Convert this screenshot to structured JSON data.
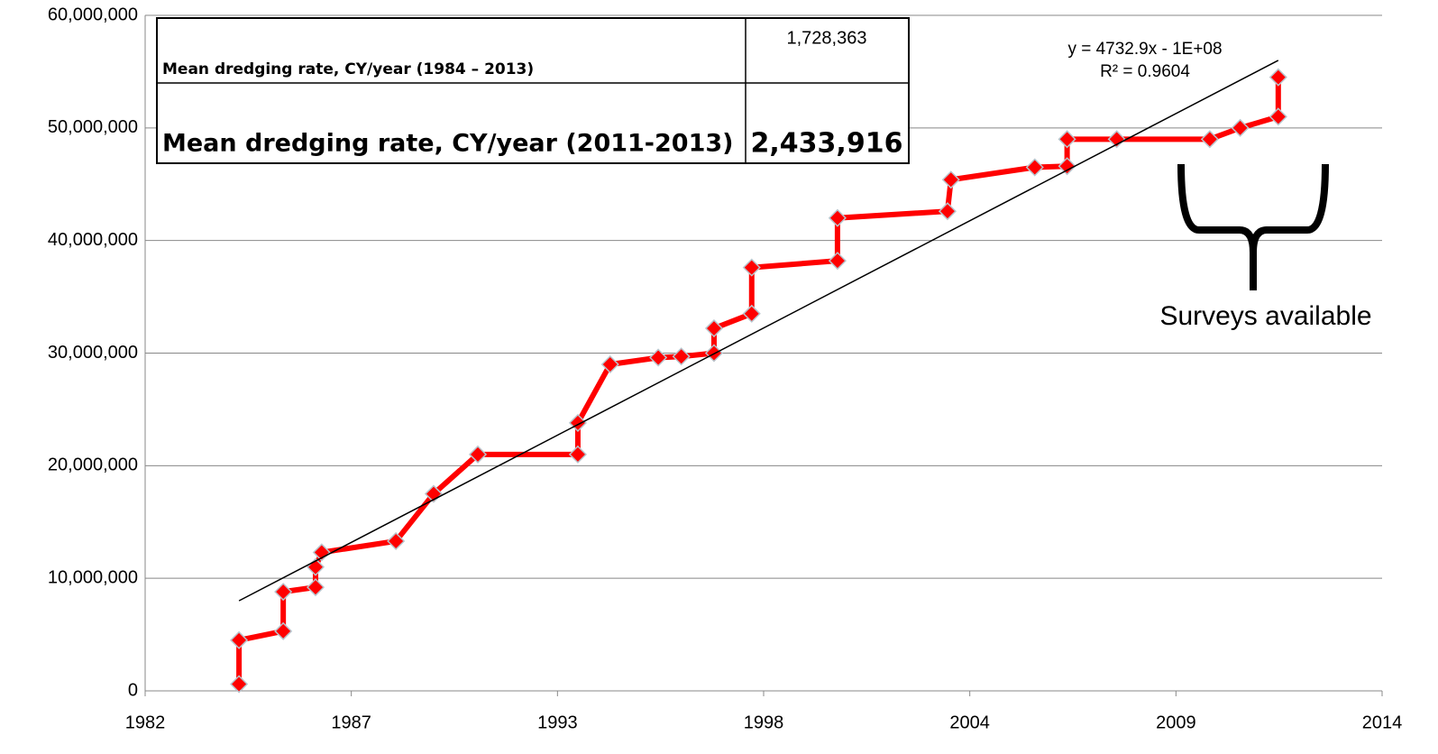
{
  "chart_data": {
    "type": "line",
    "xlim": [
      1982.6,
      2014.76
    ],
    "xticks": [
      {
        "value": 1982.6,
        "label": "1982"
      },
      {
        "value": 1987.96,
        "label": "1987"
      },
      {
        "value": 1993.32,
        "label": "1993"
      },
      {
        "value": 1998.68,
        "label": "1998"
      },
      {
        "value": 2004.04,
        "label": "2004"
      },
      {
        "value": 2009.4,
        "label": "2009"
      },
      {
        "value": 2014.76,
        "label": "2014"
      }
    ],
    "ylim": [
      0,
      60000000
    ],
    "yticks": [
      0,
      {
        "value": 10000000,
        "label": "10,000,000"
      },
      {
        "value": 20000000,
        "label": "20,000,000"
      },
      {
        "value": 30000000,
        "label": "30,000,000"
      },
      {
        "value": 40000000,
        "label": "40,000,000"
      },
      {
        "value": 50000000,
        "label": "50,000,000"
      },
      {
        "value": 60000000,
        "label": "60,000,000"
      }
    ],
    "grid": true,
    "series": [
      {
        "color": "#ff0000",
        "x": [
          1985.04,
          1985.04,
          1986.19,
          1986.19,
          1987.03,
          1987.03,
          1987.19,
          1989.12,
          1990.1,
          1991.25,
          1993.85,
          1993.85,
          1994.69,
          1995.94,
          1996.54,
          1997.39,
          1997.39,
          1998.37,
          1998.37,
          2000.6,
          2000.6,
          2003.46,
          2003.55,
          2005.73,
          2006.57,
          2006.57,
          2007.86,
          2010.28,
          2011.07,
          2012.06,
          2012.06
        ],
        "values": [
          600000,
          4500000,
          5300000,
          8800000,
          9200000,
          11000000,
          12300000,
          13300000,
          17500000,
          21000000,
          21000000,
          23800000,
          29000000,
          29600000,
          29700000,
          30000000,
          32200000,
          33500000,
          37600000,
          38200000,
          42000000,
          42600000,
          45400000,
          46500000,
          46600000,
          49000000,
          49000000,
          49000000,
          50000000,
          51000000,
          54500000
        ]
      },
      {
        "color": "#000000",
        "x": [
          1985.04,
          2012.06
        ],
        "values": [
          8000000,
          56000000
        ]
      }
    ],
    "annotations": [
      "y = 4732.9x - 1E+08",
      "R² = 0.9604",
      "Surveys available"
    ],
    "table": {
      "rows": [
        [
          "Mean dredging rate, CY/year (1984 – 2013)",
          "1,728,363"
        ],
        [
          "Mean dredging rate, CY/year (2011-2013)",
          "2,433,916"
        ]
      ]
    }
  }
}
